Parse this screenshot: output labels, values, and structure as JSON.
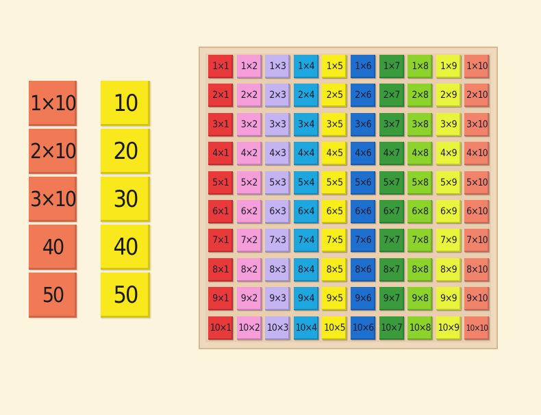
{
  "left_stack": {
    "color": "#f07a55",
    "labels": [
      "1×10",
      "2×10",
      "3×10",
      "40",
      "50"
    ]
  },
  "right_stack": {
    "color": "#f8e81c",
    "labels": [
      "10",
      "20",
      "30",
      "40",
      "50"
    ]
  },
  "board": {
    "column_colors": [
      "#e8393b",
      "#f59ed9",
      "#c4b4f2",
      "#1ea7df",
      "#f8ee1c",
      "#1f6fce",
      "#3a9b3c",
      "#8cd42c",
      "#e9f53c",
      "#f2836b"
    ],
    "tiles": [
      [
        "1×1",
        "1×2",
        "1×3",
        "1×4",
        "1×5",
        "1×6",
        "1×7",
        "1×8",
        "1×9",
        "1×10"
      ],
      [
        "2×1",
        "2×2",
        "2×3",
        "2×4",
        "2×5",
        "2×6",
        "2×7",
        "2×8",
        "2×9",
        "2×10"
      ],
      [
        "3×1",
        "3×2",
        "3×3",
        "3×4",
        "3×5",
        "3×6",
        "3×7",
        "3×8",
        "3×9",
        "3×10"
      ],
      [
        "4×1",
        "4×2",
        "4×3",
        "4×4",
        "4×5",
        "4×6",
        "4×7",
        "4×8",
        "4×9",
        "4×10"
      ],
      [
        "5×1",
        "5×2",
        "5×3",
        "5×4",
        "5×5",
        "5×6",
        "5×7",
        "5×8",
        "5×9",
        "5×10"
      ],
      [
        "6×1",
        "6×2",
        "6×3",
        "6×4",
        "6×5",
        "6×6",
        "6×7",
        "6×8",
        "6×9",
        "6×10"
      ],
      [
        "7×1",
        "7×2",
        "7×3",
        "7×4",
        "7×5",
        "7×6",
        "7×7",
        "7×8",
        "7×9",
        "7×10"
      ],
      [
        "8×1",
        "8×2",
        "8×3",
        "8×4",
        "8×5",
        "8×6",
        "8×7",
        "8×8",
        "8×9",
        "8×10"
      ],
      [
        "9×1",
        "9×2",
        "9×3",
        "9×4",
        "9×5",
        "9×6",
        "9×7",
        "9×8",
        "9×9",
        "9×10"
      ],
      [
        "10×1",
        "10×2",
        "10×3",
        "10×4",
        "10×5",
        "10×6",
        "10×7",
        "10×8",
        "10×9",
        "10×10"
      ]
    ]
  }
}
